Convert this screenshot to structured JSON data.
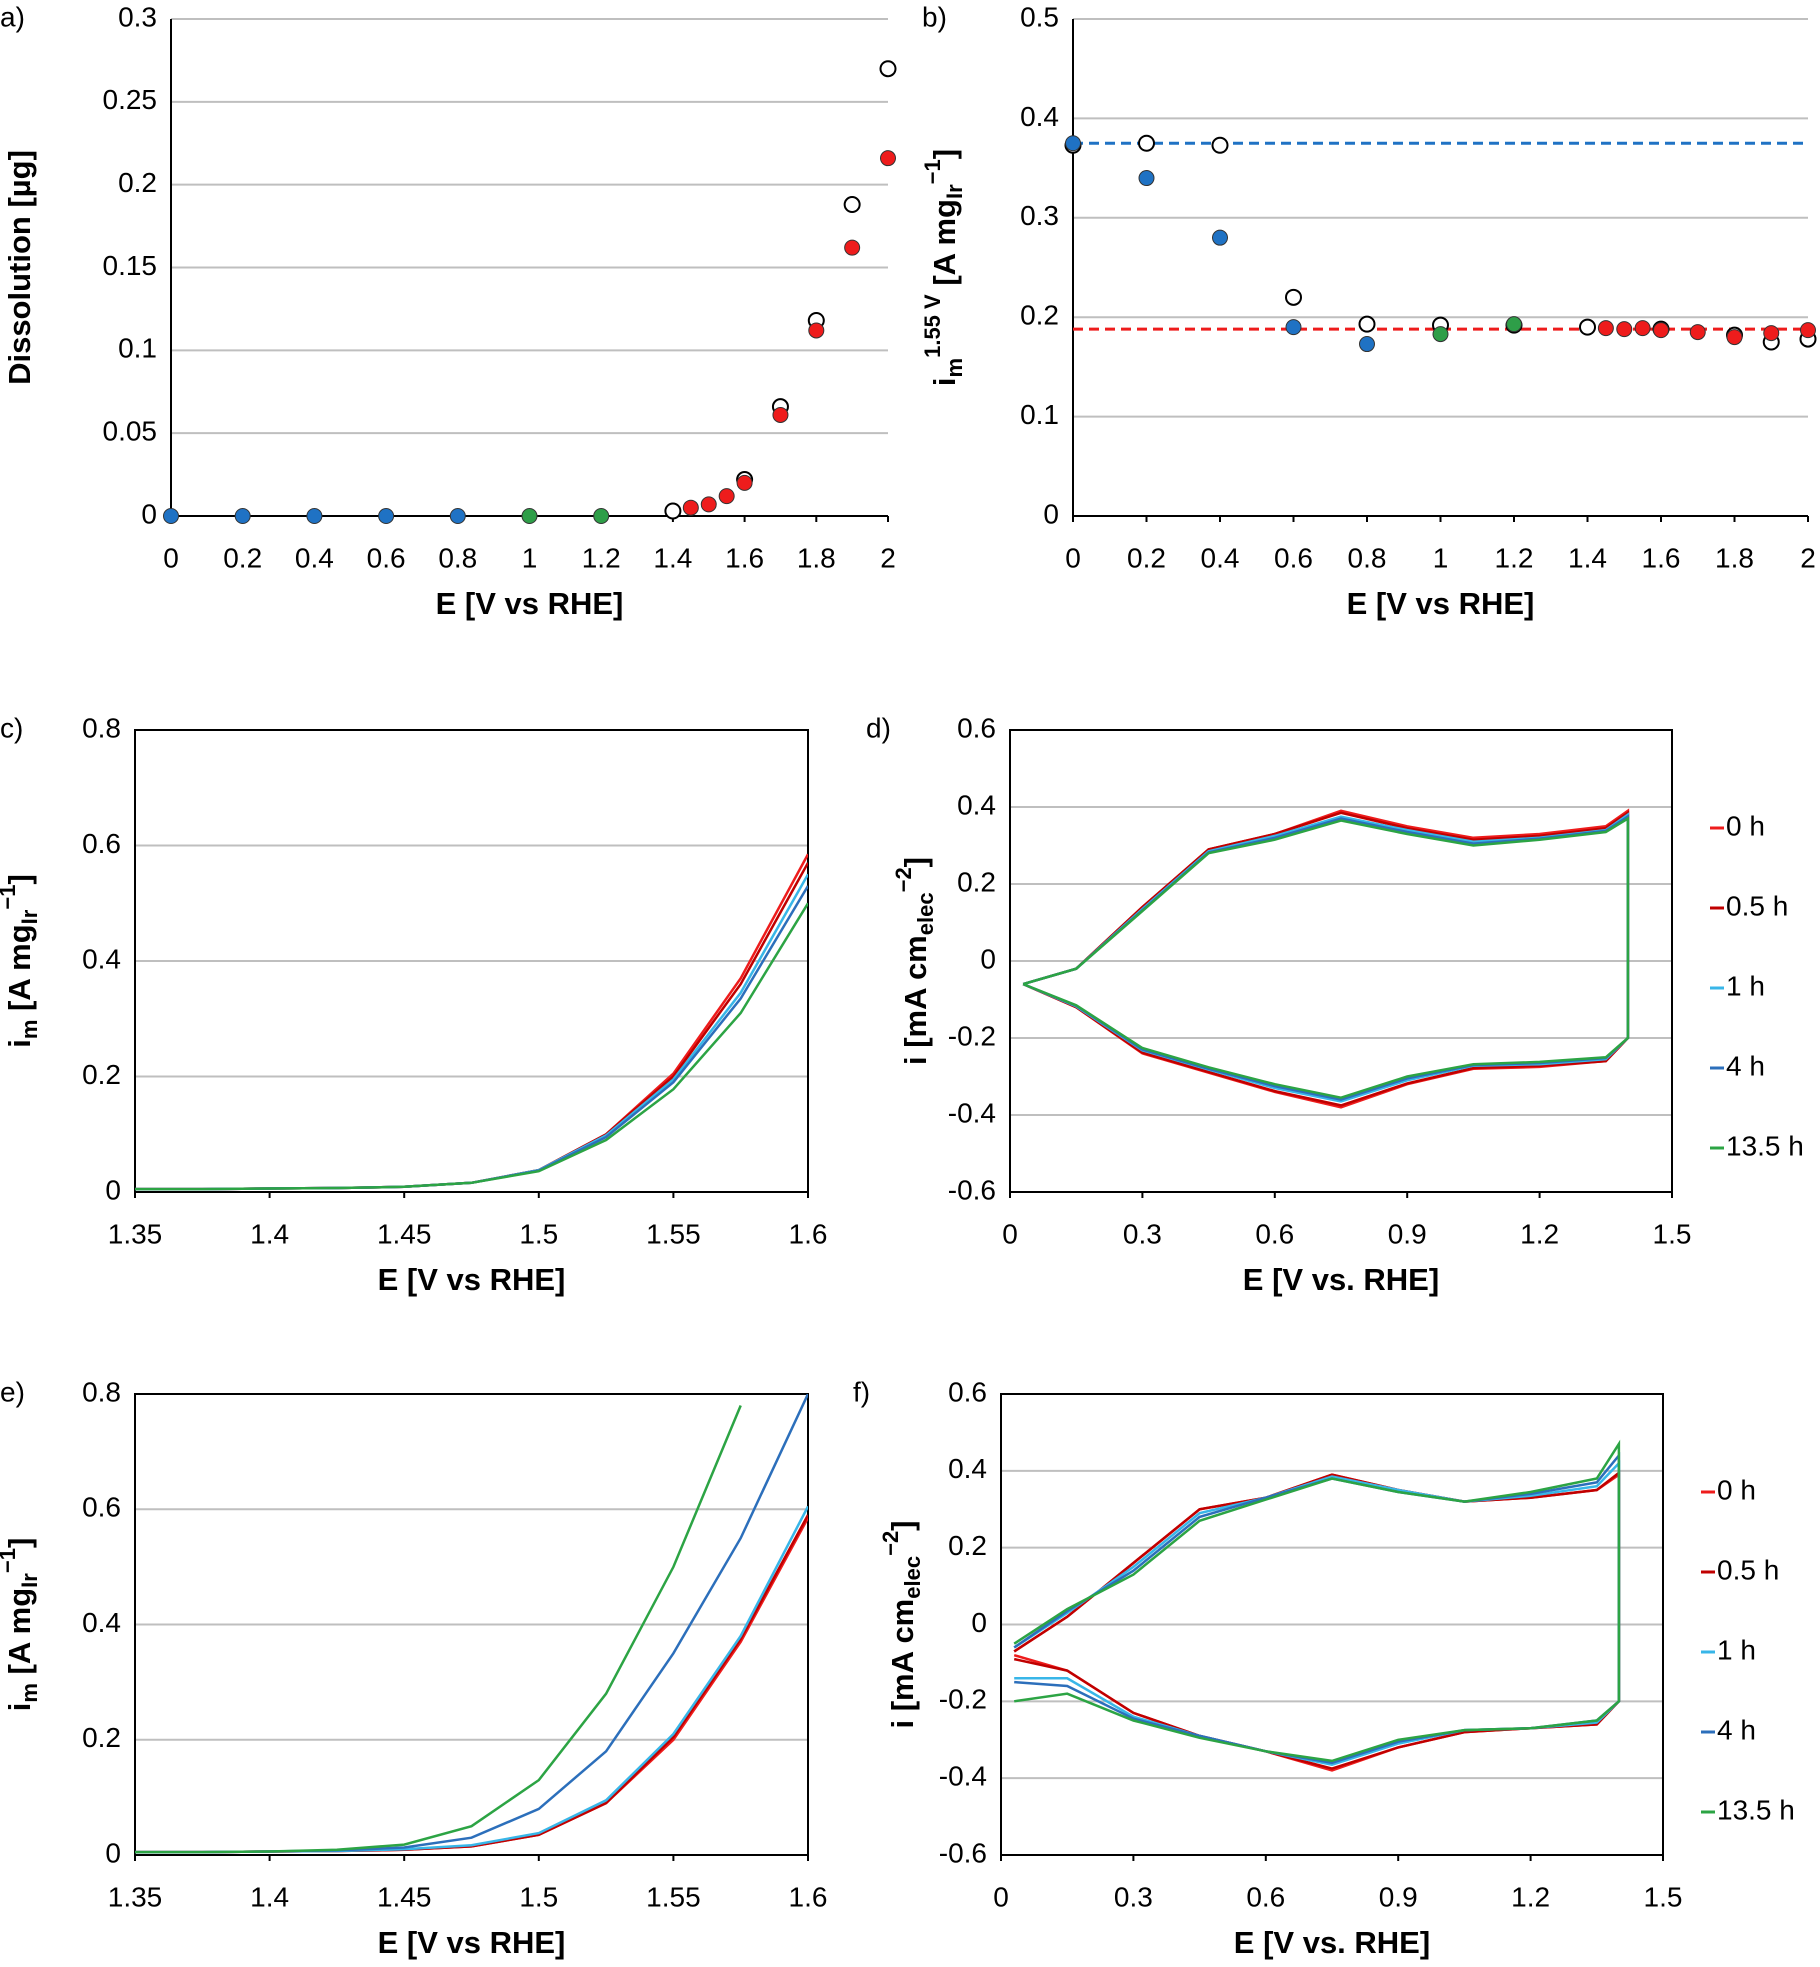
{
  "chart_data": [
    {
      "type": "scatter",
      "panel_label": "a)",
      "x_label": "E [V vs RHE]",
      "y_label": [
        [
          "Dissolution [µg]",
          "normal"
        ]
      ],
      "xlim": [
        0,
        2
      ],
      "xticks": [
        0,
        0.2,
        0.4,
        0.6,
        0.8,
        1,
        1.2,
        1.4,
        1.6,
        1.8,
        2
      ],
      "ylim": [
        0,
        0.3
      ],
      "yticks": [
        0,
        0.05,
        0.1,
        0.15,
        0.2,
        0.25,
        0.3
      ],
      "grid": true,
      "frame": "axes",
      "series": [
        {
          "color": "#1f72c4",
          "marker": "filled",
          "x": [
            0,
            0.2,
            0.4,
            0.6,
            0.8
          ],
          "values": [
            0,
            0,
            0,
            0,
            0
          ]
        },
        {
          "color": "#2e9e48",
          "marker": "filled",
          "x": [
            1,
            1.2
          ],
          "values": [
            0,
            0
          ]
        },
        {
          "color": "#000000",
          "marker": "open",
          "x": [
            1.4,
            1.6,
            1.7,
            1.8,
            1.9,
            2
          ],
          "values": [
            0.003,
            0.022,
            0.066,
            0.118,
            0.188,
            0.27
          ]
        },
        {
          "color": "#ee1c1c",
          "marker": "filled",
          "x": [
            1.45,
            1.5,
            1.55,
            1.6,
            1.7,
            1.8,
            1.9,
            2
          ],
          "values": [
            0.005,
            0.007,
            0.012,
            0.02,
            0.061,
            0.112,
            0.162,
            0.216
          ]
        }
      ]
    },
    {
      "type": "scatter",
      "panel_label": "b)",
      "x_label": "E [V vs RHE]",
      "y_label": [
        [
          "i",
          "normal"
        ],
        [
          "m",
          "sub"
        ],
        [
          "1.55 V",
          "sup"
        ],
        [
          " [A mg",
          "normal"
        ],
        [
          "Ir",
          "sub"
        ],
        [
          "−1",
          "sup"
        ],
        [
          "]",
          "normal"
        ]
      ],
      "xlim": [
        0,
        2
      ],
      "xticks": [
        0,
        0.2,
        0.4,
        0.6,
        0.8,
        1,
        1.2,
        1.4,
        1.6,
        1.8,
        2
      ],
      "ylim": [
        0,
        0.5
      ],
      "yticks": [
        0,
        0.1,
        0.2,
        0.3,
        0.4,
        0.5
      ],
      "grid": true,
      "frame": "axes",
      "hlines": [
        {
          "value": 0.375,
          "color": "#1f72c4"
        },
        {
          "value": 0.188,
          "color": "#ee1c1c"
        }
      ],
      "series": [
        {
          "color": "#000000",
          "marker": "open",
          "x": [
            0,
            0.2,
            0.4,
            0.6,
            0.8,
            1,
            1.2,
            1.4,
            1.6,
            1.8,
            1.9,
            2
          ],
          "values": [
            0.373,
            0.375,
            0.373,
            0.22,
            0.193,
            0.192,
            0.192,
            0.19,
            0.188,
            0.182,
            0.175,
            0.178
          ]
        },
        {
          "color": "#1f72c4",
          "marker": "filled",
          "x": [
            0,
            0.2,
            0.4,
            0.6,
            0.8
          ],
          "values": [
            0.375,
            0.34,
            0.28,
            0.19,
            0.173
          ]
        },
        {
          "color": "#2e9e48",
          "marker": "filled",
          "x": [
            1,
            1.2
          ],
          "values": [
            0.183,
            0.193
          ]
        },
        {
          "color": "#ee1c1c",
          "marker": "filled",
          "x": [
            1.45,
            1.5,
            1.55,
            1.6,
            1.7,
            1.8,
            1.9,
            2
          ],
          "values": [
            0.189,
            0.188,
            0.189,
            0.187,
            0.185,
            0.18,
            0.184,
            0.187
          ]
        }
      ]
    },
    {
      "type": "line",
      "panel_label": "c)",
      "x_label": "E [V vs RHE]",
      "y_label": [
        [
          "i",
          "normal"
        ],
        [
          "m",
          "sub"
        ],
        [
          " [A mg",
          "normal"
        ],
        [
          "Ir",
          "sub"
        ],
        [
          "−1",
          "sup"
        ],
        [
          "]",
          "normal"
        ]
      ],
      "xlim": [
        1.35,
        1.6
      ],
      "xticks": [
        1.35,
        1.4,
        1.45,
        1.5,
        1.55,
        1.6
      ],
      "ylim": [
        0,
        0.8
      ],
      "yticks": [
        0,
        0.2,
        0.4,
        0.6,
        0.8
      ],
      "grid": true,
      "frame": "box",
      "x": [
        1.35,
        1.375,
        1.4,
        1.425,
        1.45,
        1.475,
        1.5,
        1.525,
        1.55,
        1.575,
        1.6
      ],
      "series": [
        {
          "color": "#ee1c1c",
          "values": [
            0.005,
            0.005,
            0.006,
            0.007,
            0.009,
            0.016,
            0.038,
            0.1,
            0.205,
            0.37,
            0.585
          ]
        },
        {
          "color": "#c00000",
          "values": [
            0.005,
            0.005,
            0.006,
            0.007,
            0.009,
            0.016,
            0.038,
            0.1,
            0.2,
            0.36,
            0.57
          ]
        },
        {
          "color": "#38b6e8",
          "values": [
            0.005,
            0.005,
            0.006,
            0.007,
            0.009,
            0.016,
            0.038,
            0.098,
            0.195,
            0.345,
            0.55
          ]
        },
        {
          "color": "#2c6fbb",
          "values": [
            0.005,
            0.005,
            0.006,
            0.007,
            0.009,
            0.016,
            0.037,
            0.095,
            0.19,
            0.335,
            0.53
          ]
        },
        {
          "color": "#2ca444",
          "values": [
            0.005,
            0.005,
            0.006,
            0.007,
            0.009,
            0.016,
            0.036,
            0.09,
            0.178,
            0.31,
            0.5
          ]
        }
      ]
    },
    {
      "type": "line",
      "panel_label": "d)",
      "x_label": "E [V vs. RHE]",
      "y_label": [
        [
          "i [mA cm",
          "normal"
        ],
        [
          "elec",
          "sub"
        ],
        [
          "−2",
          "sup"
        ],
        [
          "]",
          "normal"
        ]
      ],
      "xlim": [
        0,
        1.5
      ],
      "xticks": [
        0,
        0.3,
        0.6,
        0.9,
        1.2,
        1.5
      ],
      "ylim": [
        -0.6,
        0.6
      ],
      "yticks": [
        -0.6,
        -0.4,
        -0.2,
        0,
        0.2,
        0.4,
        0.6
      ],
      "grid": true,
      "frame": "box",
      "legend": "right",
      "x": [
        0.03,
        0.15,
        0.3,
        0.45,
        0.6,
        0.75,
        0.9,
        1.05,
        1.2,
        1.35,
        1.4,
        1.4,
        1.35,
        1.2,
        1.05,
        0.9,
        0.75,
        0.6,
        0.45,
        0.3,
        0.15,
        0.03
      ],
      "series": [
        {
          "name": "0 h",
          "color": "#ee1c1c",
          "values": [
            -0.06,
            -0.02,
            0.14,
            0.29,
            0.33,
            0.39,
            0.35,
            0.32,
            0.33,
            0.35,
            0.39,
            -0.2,
            -0.26,
            -0.275,
            -0.28,
            -0.32,
            -0.38,
            -0.34,
            -0.29,
            -0.24,
            -0.12,
            -0.06
          ]
        },
        {
          "name": "0.5 h",
          "color": "#c00000",
          "values": [
            -0.06,
            -0.02,
            0.14,
            0.29,
            0.33,
            0.385,
            0.345,
            0.315,
            0.325,
            0.345,
            0.385,
            -0.2,
            -0.26,
            -0.272,
            -0.278,
            -0.318,
            -0.375,
            -0.338,
            -0.288,
            -0.238,
            -0.12,
            -0.06
          ]
        },
        {
          "name": "1 h",
          "color": "#38b6e8",
          "values": [
            -0.06,
            -0.02,
            0.135,
            0.285,
            0.325,
            0.375,
            0.34,
            0.31,
            0.32,
            0.34,
            0.38,
            -0.2,
            -0.255,
            -0.268,
            -0.272,
            -0.31,
            -0.365,
            -0.33,
            -0.282,
            -0.232,
            -0.118,
            -0.06
          ]
        },
        {
          "name": "4 h",
          "color": "#2c6fbb",
          "values": [
            -0.06,
            -0.02,
            0.132,
            0.282,
            0.32,
            0.37,
            0.335,
            0.305,
            0.318,
            0.338,
            0.375,
            -0.2,
            -0.252,
            -0.265,
            -0.27,
            -0.305,
            -0.36,
            -0.325,
            -0.28,
            -0.23,
            -0.116,
            -0.06
          ]
        },
        {
          "name": "13.5 h",
          "color": "#2ca444",
          "values": [
            -0.06,
            -0.02,
            0.13,
            0.28,
            0.315,
            0.365,
            0.33,
            0.3,
            0.315,
            0.335,
            0.37,
            -0.2,
            -0.25,
            -0.262,
            -0.268,
            -0.3,
            -0.355,
            -0.32,
            -0.276,
            -0.226,
            -0.115,
            -0.06
          ]
        }
      ]
    },
    {
      "type": "line",
      "panel_label": "e)",
      "x_label": "E [V vs RHE]",
      "y_label": [
        [
          "i",
          "normal"
        ],
        [
          "m",
          "sub"
        ],
        [
          " [A mg",
          "normal"
        ],
        [
          "Ir",
          "sub"
        ],
        [
          "−1",
          "sup"
        ],
        [
          "]",
          "normal"
        ]
      ],
      "xlim": [
        1.35,
        1.6
      ],
      "xticks": [
        1.35,
        1.4,
        1.45,
        1.5,
        1.55,
        1.6
      ],
      "ylim": [
        0,
        0.8
      ],
      "yticks": [
        0,
        0.2,
        0.4,
        0.6,
        0.8
      ],
      "grid": true,
      "frame": "box",
      "x": [
        1.35,
        1.375,
        1.4,
        1.425,
        1.45,
        1.475,
        1.5,
        1.525,
        1.55,
        1.575,
        1.6
      ],
      "series": [
        {
          "color": "#ee1c1c",
          "values": [
            0.005,
            0.005,
            0.006,
            0.007,
            0.009,
            0.015,
            0.035,
            0.09,
            0.2,
            0.37,
            0.585
          ]
        },
        {
          "color": "#c00000",
          "values": [
            0.005,
            0.005,
            0.006,
            0.007,
            0.009,
            0.015,
            0.035,
            0.09,
            0.205,
            0.375,
            0.59
          ]
        },
        {
          "color": "#38b6e8",
          "values": [
            0.005,
            0.005,
            0.006,
            0.007,
            0.01,
            0.017,
            0.038,
            0.095,
            0.21,
            0.38,
            0.605
          ]
        },
        {
          "color": "#2c6fbb",
          "values": [
            0.005,
            0.005,
            0.006,
            0.008,
            0.013,
            0.03,
            0.08,
            0.18,
            0.35,
            0.55,
            0.8
          ]
        },
        {
          "color": "#2ca444",
          "values": [
            0.005,
            0.005,
            0.006,
            0.009,
            0.018,
            0.05,
            0.13,
            0.28,
            0.5,
            0.78,
            null
          ]
        }
      ]
    },
    {
      "type": "line",
      "panel_label": "f)",
      "x_label": "E [V vs. RHE]",
      "y_label": [
        [
          "i [mA cm",
          "normal"
        ],
        [
          "elec",
          "sub"
        ],
        [
          "−2",
          "sup"
        ],
        [
          "]",
          "normal"
        ]
      ],
      "xlim": [
        0,
        1.5
      ],
      "xticks": [
        0,
        0.3,
        0.6,
        0.9,
        1.2,
        1.5
      ],
      "ylim": [
        -0.6,
        0.6
      ],
      "yticks": [
        -0.6,
        -0.4,
        -0.2,
        0,
        0.2,
        0.4,
        0.6
      ],
      "grid": true,
      "frame": "box",
      "legend": "right",
      "x": [
        0.03,
        0.15,
        0.3,
        0.45,
        0.6,
        0.75,
        0.9,
        1.05,
        1.2,
        1.35,
        1.4,
        1.4,
        1.35,
        1.2,
        1.05,
        0.9,
        0.75,
        0.6,
        0.45,
        0.3,
        0.15,
        0.03
      ],
      "series": [
        {
          "name": "0 h",
          "color": "#ee1c1c",
          "values": [
            -0.07,
            0.02,
            0.16,
            0.3,
            0.33,
            0.39,
            0.35,
            0.32,
            0.33,
            0.35,
            0.39,
            -0.2,
            -0.26,
            -0.27,
            -0.28,
            -0.32,
            -0.38,
            -0.33,
            -0.29,
            -0.23,
            -0.12,
            -0.08
          ]
        },
        {
          "name": "0.5 h",
          "color": "#c00000",
          "values": [
            -0.07,
            0.02,
            0.16,
            0.3,
            0.33,
            0.39,
            0.35,
            0.32,
            0.33,
            0.35,
            0.395,
            -0.2,
            -0.26,
            -0.27,
            -0.28,
            -0.32,
            -0.375,
            -0.33,
            -0.29,
            -0.23,
            -0.12,
            -0.09
          ]
        },
        {
          "name": "1 h",
          "color": "#38b6e8",
          "values": [
            -0.06,
            0.03,
            0.15,
            0.29,
            0.33,
            0.385,
            0.35,
            0.32,
            0.335,
            0.36,
            0.42,
            -0.2,
            -0.255,
            -0.27,
            -0.275,
            -0.31,
            -0.365,
            -0.33,
            -0.29,
            -0.24,
            -0.14,
            -0.14
          ]
        },
        {
          "name": "4 h",
          "color": "#2c6fbb",
          "values": [
            -0.06,
            0.035,
            0.14,
            0.28,
            0.33,
            0.38,
            0.345,
            0.32,
            0.34,
            0.37,
            0.44,
            -0.2,
            -0.25,
            -0.27,
            -0.275,
            -0.305,
            -0.36,
            -0.33,
            -0.29,
            -0.245,
            -0.16,
            -0.15
          ]
        },
        {
          "name": "13.5 h",
          "color": "#2ca444",
          "values": [
            -0.05,
            0.04,
            0.13,
            0.27,
            0.325,
            0.38,
            0.345,
            0.32,
            0.345,
            0.38,
            0.47,
            -0.2,
            -0.25,
            -0.27,
            -0.275,
            -0.3,
            -0.355,
            -0.33,
            -0.295,
            -0.25,
            -0.18,
            -0.2
          ]
        }
      ]
    }
  ]
}
